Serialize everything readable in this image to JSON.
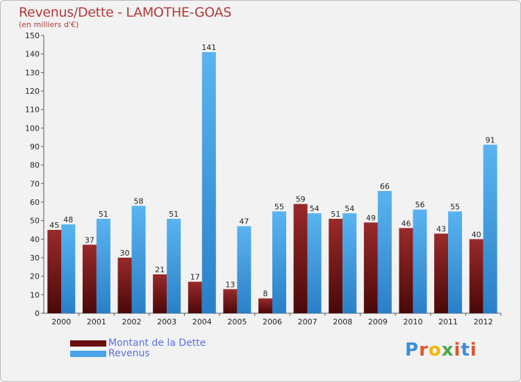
{
  "title": "Revenus/Dette - LAMOTHE-GOAS",
  "subtitle": "(en milliers d'€)",
  "logo": {
    "text": "Proxiti",
    "colors": [
      "#3a8fd8",
      "#e0562a",
      "#f4b400",
      "#4aa84a",
      "#e0562a",
      "#3a8fd8",
      "#e0562a"
    ]
  },
  "colors": {
    "dette": "#7a1a1a",
    "revenus": "#4aa3e6"
  },
  "chart_data": {
    "type": "bar",
    "title": "Revenus/Dette - LAMOTHE-GOAS",
    "subtitle": "(en milliers d'€)",
    "categories": [
      "2000",
      "2001",
      "2002",
      "2003",
      "2004",
      "2005",
      "2006",
      "2007",
      "2008",
      "2009",
      "2010",
      "2011",
      "2012"
    ],
    "series": [
      {
        "name": "Montant de la Dette",
        "values": [
          45,
          37,
          30,
          21,
          17,
          13,
          8,
          59,
          51,
          49,
          46,
          43,
          40
        ]
      },
      {
        "name": "Revenus",
        "values": [
          48,
          51,
          58,
          51,
          141,
          47,
          55,
          54,
          54,
          66,
          56,
          55,
          91
        ]
      }
    ],
    "ylim": [
      0,
      150
    ],
    "yticks": [
      0,
      10,
      20,
      30,
      40,
      50,
      60,
      70,
      80,
      90,
      100,
      110,
      120,
      130,
      140,
      150
    ],
    "grid": false,
    "legend": "bottom-left"
  }
}
